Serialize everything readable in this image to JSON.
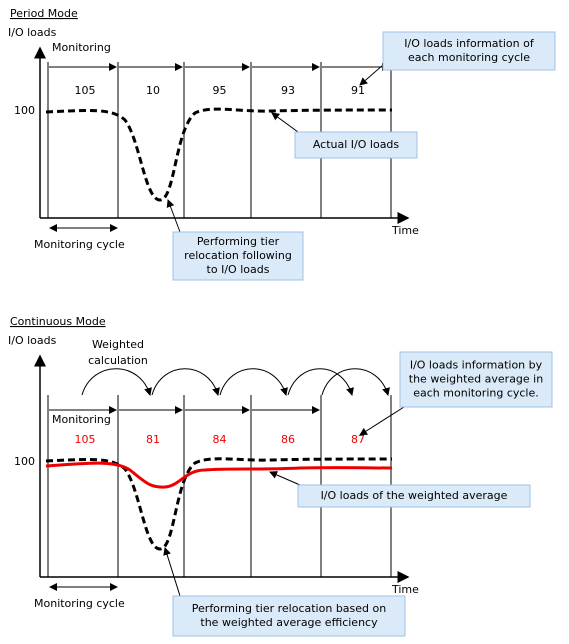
{
  "period": {
    "title": "Period Mode",
    "y_label": "I/O loads",
    "monitoring": "Monitoring",
    "y_value": 100,
    "x_label": "Time",
    "cycle_label": "Monitoring cycle",
    "values": [
      105,
      10,
      95,
      93,
      91
    ],
    "callouts": [
      {
        "lines": [
          "I/O loads information of",
          "each monitoring cycle"
        ]
      },
      {
        "lines": [
          "Actual I/O loads"
        ]
      },
      {
        "lines": [
          "Performing tier",
          "relocation following",
          "to I/O loads"
        ]
      }
    ]
  },
  "continuous": {
    "title": "Continuous Mode",
    "y_label": "I/O loads",
    "weighted": [
      "Weighted",
      "calculation"
    ],
    "monitoring": "Monitoring",
    "y_value": 100,
    "x_label": "Time",
    "cycle_label": "Monitoring cycle",
    "values": [
      105,
      81,
      84,
      86,
      87
    ],
    "callouts": [
      {
        "lines": [
          "I/O loads information by",
          "the weighted average in",
          "each monitoring cycle."
        ]
      },
      {
        "lines": [
          "I/O loads of the weighted average"
        ]
      },
      {
        "lines": [
          "Performing tier relocation based on",
          "the weighted average efficiency"
        ]
      }
    ]
  }
}
